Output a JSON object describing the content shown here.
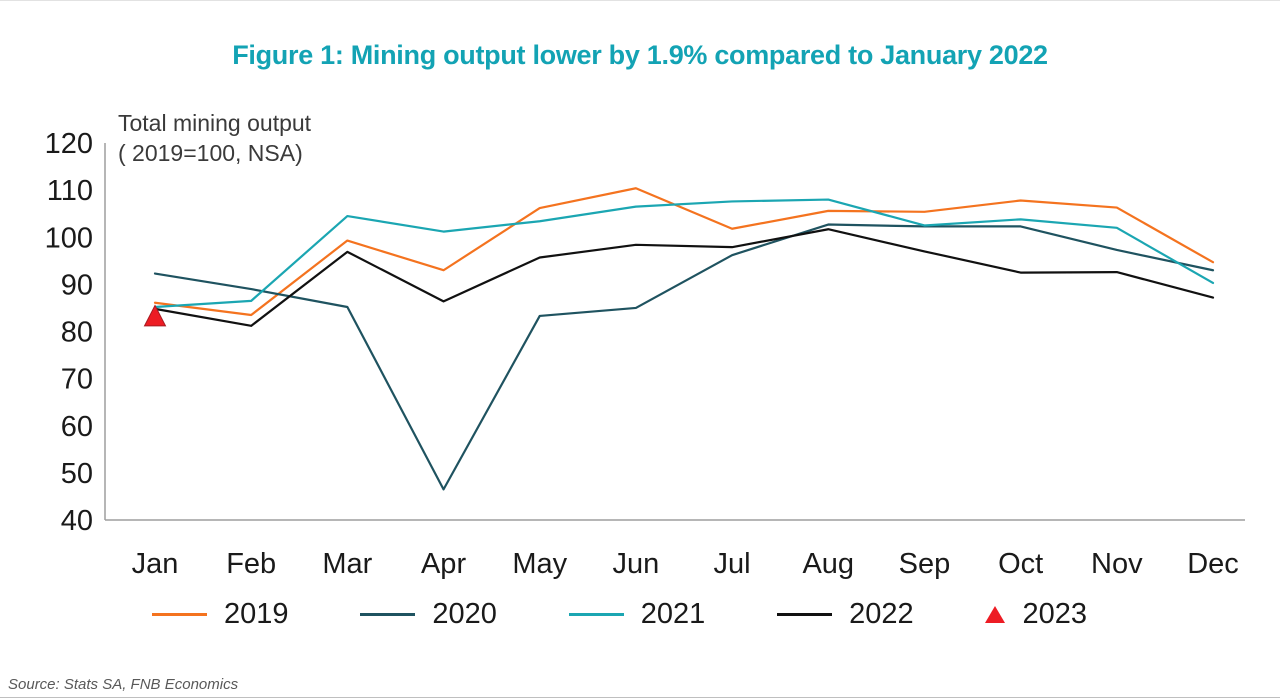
{
  "page": {
    "title": "Figure 1: Mining output lower by 1.9% compared to January 2022",
    "source": "Source: Stats SA, FNB Economics"
  },
  "chart_data": {
    "type": "line",
    "title": "Figure 1: Mining output lower by 1.9% compared to January 2022",
    "annotation_line1": "Total mining output",
    "annotation_line2": "( 2019=100, NSA)",
    "categories": [
      "Jan",
      "Feb",
      "Mar",
      "Apr",
      "May",
      "Jun",
      "Jul",
      "Aug",
      "Sep",
      "Oct",
      "Nov",
      "Dec"
    ],
    "y_axis": {
      "min": 40,
      "max": 120,
      "step": 10
    },
    "grid": false,
    "legend_position": "bottom",
    "axis_color": "#9e9e9e",
    "series": [
      {
        "name": "2019",
        "type": "line",
        "color": "#f4731f",
        "values": [
          86.1,
          83.5,
          99.3,
          93.0,
          106.2,
          110.4,
          101.8,
          105.6,
          105.4,
          107.8,
          106.3,
          94.7
        ]
      },
      {
        "name": "2020",
        "type": "line",
        "color": "#1f5360",
        "values": [
          92.3,
          89.0,
          85.2,
          46.5,
          83.3,
          85.0,
          96.2,
          102.7,
          102.3,
          102.3,
          97.3,
          93.0
        ]
      },
      {
        "name": "2021",
        "type": "line",
        "color": "#1ba6b2",
        "values": [
          85.2,
          86.5,
          104.5,
          101.2,
          103.4,
          106.5,
          107.6,
          108.0,
          102.5,
          103.8,
          102.0,
          90.3
        ]
      },
      {
        "name": "2022",
        "type": "line",
        "color": "#111111",
        "values": [
          84.8,
          81.2,
          96.9,
          86.4,
          95.7,
          98.4,
          97.9,
          101.7,
          97.0,
          92.5,
          92.6,
          87.2
        ]
      },
      {
        "name": "2023",
        "type": "point",
        "marker": "triangle",
        "color": "#ed1c24",
        "marker_edge": "#a61b22",
        "values": [
          83.2
        ]
      }
    ]
  }
}
